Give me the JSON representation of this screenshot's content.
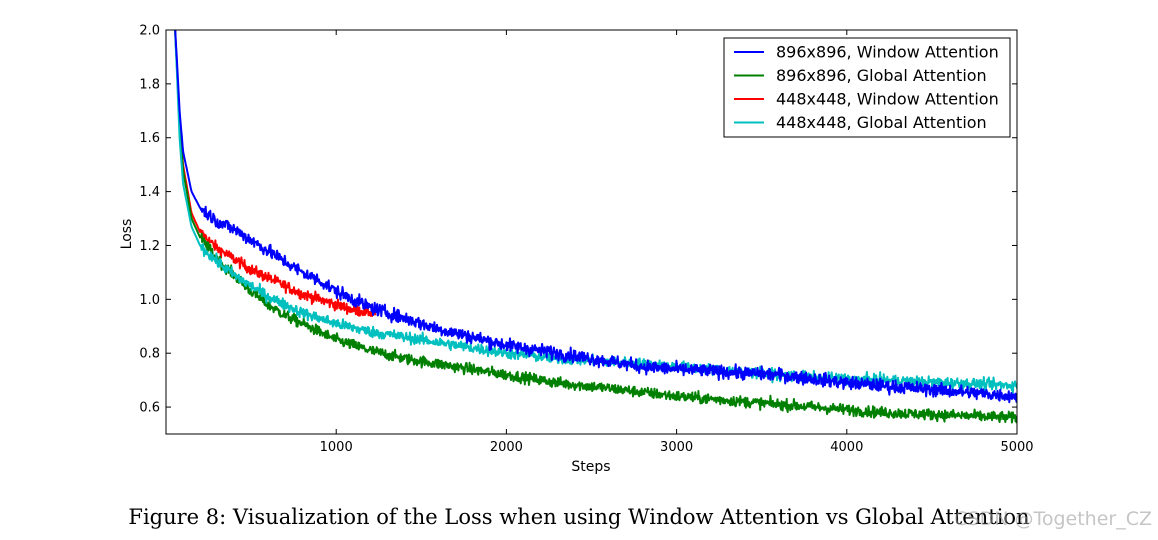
{
  "chart_data": {
    "type": "line",
    "xlabel": "Steps",
    "ylabel": "Loss",
    "xlim": [
      0,
      5000
    ],
    "ylim": [
      0.5,
      2.0
    ],
    "xticks": [
      1000,
      2000,
      3000,
      4000,
      5000
    ],
    "xtick_labels": [
      "1000",
      "2000",
      "3000",
      "4000",
      "5000"
    ],
    "yticks": [
      0.6,
      0.8,
      1.0,
      1.2,
      1.4,
      1.6,
      1.8,
      2.0
    ],
    "ytick_labels": [
      "0.6",
      "0.8",
      "1.0",
      "1.2",
      "1.4",
      "1.6",
      "1.8",
      "2.0"
    ],
    "grid": false,
    "legend_position": "top-right",
    "series": [
      {
        "name": "896x896, Window Attention",
        "color": "#0000ff",
        "noise": 0.012,
        "x": [
          50,
          80,
          100,
          150,
          200,
          300,
          400,
          500,
          600,
          700,
          800,
          900,
          1000,
          1200,
          1400,
          1600,
          1800,
          2000,
          2200,
          2500,
          2800,
          3000,
          3300,
          3600,
          4000,
          4400,
          4800,
          5000
        ],
        "y": [
          2.05,
          1.7,
          1.55,
          1.4,
          1.34,
          1.29,
          1.26,
          1.22,
          1.18,
          1.14,
          1.1,
          1.07,
          1.03,
          0.97,
          0.93,
          0.89,
          0.86,
          0.83,
          0.81,
          0.78,
          0.75,
          0.74,
          0.73,
          0.72,
          0.69,
          0.67,
          0.65,
          0.64
        ]
      },
      {
        "name": "896x896, Global Attention",
        "color": "#008000",
        "noise": 0.01,
        "x": [
          50,
          80,
          100,
          150,
          200,
          300,
          400,
          500,
          600,
          700,
          800,
          900,
          1000,
          1200,
          1400,
          1600,
          1800,
          2000,
          2300,
          2600,
          3000,
          3400,
          3800,
          4200,
          4600,
          5000
        ],
        "y": [
          2.05,
          1.65,
          1.48,
          1.3,
          1.23,
          1.15,
          1.09,
          1.03,
          0.98,
          0.94,
          0.91,
          0.88,
          0.85,
          0.81,
          0.78,
          0.76,
          0.74,
          0.72,
          0.69,
          0.67,
          0.64,
          0.62,
          0.6,
          0.58,
          0.57,
          0.56
        ]
      },
      {
        "name": "448x448, Window Attention",
        "color": "#ff0000",
        "noise": 0.01,
        "x": [
          50,
          80,
          100,
          150,
          200,
          300,
          400,
          500,
          600,
          700,
          800,
          900,
          1000,
          1100,
          1230
        ],
        "y": [
          2.05,
          1.65,
          1.5,
          1.32,
          1.25,
          1.19,
          1.15,
          1.11,
          1.08,
          1.05,
          1.02,
          1.0,
          0.98,
          0.96,
          0.95
        ]
      },
      {
        "name": "448x448, Global Attention",
        "color": "#00bfbf",
        "noise": 0.01,
        "x": [
          50,
          80,
          100,
          150,
          200,
          300,
          400,
          500,
          600,
          700,
          800,
          900,
          1000,
          1200,
          1400,
          1600,
          1800,
          2000,
          2300,
          2600,
          3000,
          3400,
          3800,
          4200,
          4600,
          5000
        ],
        "y": [
          2.05,
          1.6,
          1.43,
          1.27,
          1.2,
          1.14,
          1.09,
          1.05,
          1.01,
          0.98,
          0.95,
          0.93,
          0.91,
          0.88,
          0.86,
          0.84,
          0.82,
          0.8,
          0.78,
          0.77,
          0.75,
          0.73,
          0.71,
          0.7,
          0.69,
          0.68
        ]
      }
    ]
  },
  "caption": "Figure 8: Visualization of the Loss when using Window Attention vs Global Attention",
  "watermark": "CSDN @Together_CZ"
}
